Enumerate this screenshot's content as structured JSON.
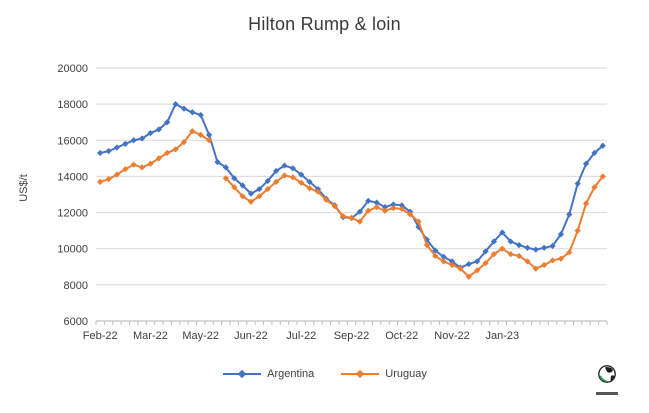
{
  "title": "Hilton Rump & loin",
  "y_axis": {
    "label": "US$/t"
  },
  "legend": [
    {
      "name": "Argentina",
      "color": "#4472C4"
    },
    {
      "name": "Uruguay",
      "color": "#ED7D31"
    }
  ],
  "colors": {
    "argentina": "#4472C4",
    "uruguay": "#ED7D31",
    "gridline": "#D9D9D9",
    "axis_line": "#BFBFBF",
    "tick_text": "#404040",
    "title_text": "#3B3B3B"
  },
  "logo": {
    "icon": "globe-logo",
    "position": "bottom-right"
  },
  "chart_data": {
    "type": "line",
    "title": "Hilton Rump & loin",
    "xlabel": "",
    "ylabel": "US$/t",
    "ylim": [
      6000,
      20000
    ],
    "y_ticks": [
      6000,
      8000,
      10000,
      12000,
      14000,
      16000,
      18000,
      20000
    ],
    "grid": "horizontal",
    "legend_position": "bottom",
    "x_frequency": "weekly",
    "x_tick_labels": [
      "Feb-22",
      "Mar-22",
      "May-22",
      "Jun-22",
      "Jul-22",
      "Sep-22",
      "Oct-22",
      "Nov-22",
      "Jan-23"
    ],
    "x_tick_label_indices": [
      0,
      6,
      12,
      18,
      24,
      30,
      36,
      42,
      48
    ],
    "marker": "diamond",
    "series": [
      {
        "name": "Argentina",
        "color": "#4472C4",
        "values": [
          15300,
          15400,
          15600,
          15800,
          16000,
          16100,
          16400,
          16600,
          17000,
          18000,
          17750,
          17550,
          17400,
          16300,
          14800,
          14500,
          13900,
          13500,
          13050,
          13300,
          13750,
          14300,
          14600,
          14450,
          14100,
          13700,
          13300,
          12750,
          12400,
          11750,
          11700,
          12050,
          12650,
          12550,
          12300,
          12450,
          12400,
          12050,
          11200,
          10500,
          9900,
          9550,
          9300,
          8950,
          9150,
          9300,
          9850,
          10400,
          10900,
          10400,
          10200,
          10050,
          9950,
          10050,
          10150,
          10800,
          11900,
          13600,
          14700,
          15300,
          15700
        ]
      },
      {
        "name": "Uruguay",
        "color": "#ED7D31",
        "values": [
          13700,
          13850,
          14100,
          14400,
          14650,
          14500,
          14700,
          15000,
          15300,
          15500,
          15900,
          16500,
          16300,
          16000,
          null,
          13900,
          13400,
          12900,
          12600,
          12900,
          13300,
          13700,
          14050,
          13950,
          13650,
          13350,
          13150,
          12700,
          12350,
          11800,
          11700,
          11500,
          12100,
          12300,
          12100,
          12250,
          12200,
          11900,
          11500,
          10200,
          9600,
          9300,
          9100,
          8900,
          8450,
          8800,
          9200,
          9700,
          10000,
          9700,
          9600,
          9300,
          8900,
          9100,
          9350,
          9450,
          9800,
          11000,
          12500,
          13400,
          14000
        ]
      }
    ]
  }
}
